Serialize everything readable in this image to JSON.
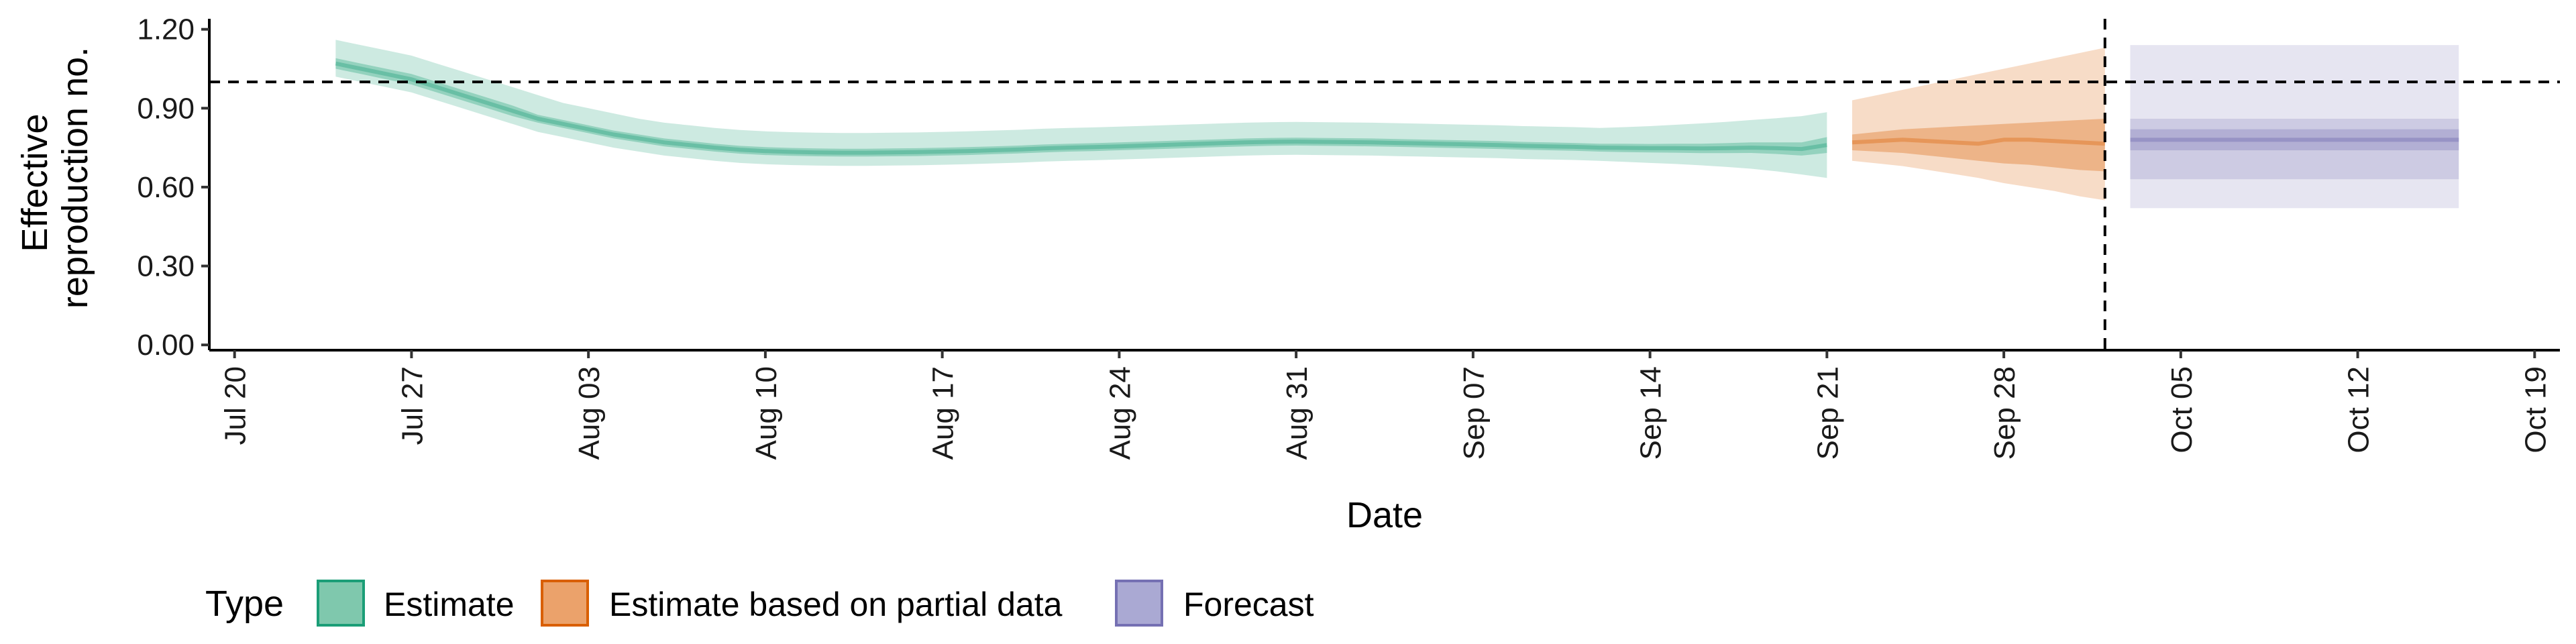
{
  "chart_data": {
    "type": "area",
    "xlabel": "Date",
    "ylabel_lines": [
      "Effective",
      "reproduction no."
    ],
    "x_range": [
      "2020-07-19",
      "2020-10-20"
    ],
    "ylim": [
      -0.02,
      1.24
    ],
    "grid": false,
    "y_ticks": [
      {
        "value": 0.0,
        "label": "0.00"
      },
      {
        "value": 0.3,
        "label": "0.30"
      },
      {
        "value": 0.6,
        "label": "0.60"
      },
      {
        "value": 0.9,
        "label": "0.90"
      },
      {
        "value": 1.2,
        "label": "1.20"
      }
    ],
    "x_ticks": [
      {
        "date": "2020-07-20",
        "label": "Jul 20"
      },
      {
        "date": "2020-07-27",
        "label": "Jul 27"
      },
      {
        "date": "2020-08-03",
        "label": "Aug 03"
      },
      {
        "date": "2020-08-10",
        "label": "Aug 10"
      },
      {
        "date": "2020-08-17",
        "label": "Aug 17"
      },
      {
        "date": "2020-08-24",
        "label": "Aug 24"
      },
      {
        "date": "2020-08-31",
        "label": "Aug 31"
      },
      {
        "date": "2020-09-07",
        "label": "Sep 07"
      },
      {
        "date": "2020-09-14",
        "label": "Sep 14"
      },
      {
        "date": "2020-09-21",
        "label": "Sep 21"
      },
      {
        "date": "2020-09-28",
        "label": "Sep 28"
      },
      {
        "date": "2020-10-05",
        "label": "Oct 05"
      },
      {
        "date": "2020-10-12",
        "label": "Oct 12"
      },
      {
        "date": "2020-10-19",
        "label": "Oct 19"
      }
    ],
    "reference_line_y": 1.0,
    "reference_line_x": "2020-10-02",
    "legend": {
      "title": "Type",
      "placement": "bottom",
      "entries": [
        {
          "key": "estimate",
          "label": "Estimate",
          "fill": "#7fc8ad",
          "stroke": "#1b9e77"
        },
        {
          "key": "partial",
          "label": "Estimate based on partial data",
          "fill": "#eba26b",
          "stroke": "#d95f02"
        },
        {
          "key": "forecast",
          "label": "Forecast",
          "fill": "#aaa9d3",
          "stroke": "#7570b3"
        }
      ]
    },
    "series": [
      {
        "key": "estimate",
        "color": "#1b9e77",
        "x": [
          "2020-07-24",
          "2020-07-25",
          "2020-07-26",
          "2020-07-27",
          "2020-07-28",
          "2020-07-29",
          "2020-07-30",
          "2020-07-31",
          "2020-08-01",
          "2020-08-02",
          "2020-08-03",
          "2020-08-04",
          "2020-08-05",
          "2020-08-06",
          "2020-08-07",
          "2020-08-08",
          "2020-08-09",
          "2020-08-10",
          "2020-08-11",
          "2020-08-12",
          "2020-08-13",
          "2020-08-14",
          "2020-08-15",
          "2020-08-16",
          "2020-08-17",
          "2020-08-18",
          "2020-08-19",
          "2020-08-20",
          "2020-08-21",
          "2020-08-22",
          "2020-08-23",
          "2020-08-24",
          "2020-08-25",
          "2020-08-26",
          "2020-08-27",
          "2020-08-28",
          "2020-08-29",
          "2020-08-30",
          "2020-08-31",
          "2020-09-01",
          "2020-09-02",
          "2020-09-03",
          "2020-09-04",
          "2020-09-05",
          "2020-09-06",
          "2020-09-07",
          "2020-09-08",
          "2020-09-09",
          "2020-09-10",
          "2020-09-11",
          "2020-09-12",
          "2020-09-13",
          "2020-09-14",
          "2020-09-15",
          "2020-09-16",
          "2020-09-17",
          "2020-09-18",
          "2020-09-19",
          "2020-09-20",
          "2020-09-21"
        ],
        "median": [
          1.07,
          1.05,
          1.03,
          1.01,
          0.98,
          0.95,
          0.92,
          0.89,
          0.86,
          0.84,
          0.82,
          0.8,
          0.785,
          0.77,
          0.76,
          0.75,
          0.742,
          0.737,
          0.734,
          0.732,
          0.731,
          0.731,
          0.732,
          0.733,
          0.735,
          0.737,
          0.74,
          0.743,
          0.747,
          0.75,
          0.752,
          0.755,
          0.758,
          0.761,
          0.764,
          0.767,
          0.77,
          0.772,
          0.773,
          0.772,
          0.771,
          0.77,
          0.768,
          0.766,
          0.764,
          0.762,
          0.76,
          0.757,
          0.755,
          0.753,
          0.75,
          0.749,
          0.748,
          0.748,
          0.747,
          0.748,
          0.75,
          0.748,
          0.745,
          0.76
        ],
        "lower50": [
          1.05,
          1.03,
          1.01,
          0.99,
          0.96,
          0.93,
          0.9,
          0.87,
          0.845,
          0.825,
          0.805,
          0.785,
          0.77,
          0.755,
          0.745,
          0.735,
          0.727,
          0.722,
          0.719,
          0.717,
          0.716,
          0.716,
          0.717,
          0.718,
          0.72,
          0.722,
          0.725,
          0.728,
          0.732,
          0.735,
          0.737,
          0.74,
          0.743,
          0.746,
          0.749,
          0.752,
          0.755,
          0.757,
          0.758,
          0.757,
          0.756,
          0.755,
          0.753,
          0.751,
          0.749,
          0.747,
          0.745,
          0.742,
          0.74,
          0.738,
          0.735,
          0.733,
          0.732,
          0.731,
          0.729,
          0.729,
          0.73,
          0.726,
          0.72,
          0.73
        ],
        "upper50": [
          1.09,
          1.07,
          1.05,
          1.03,
          1.0,
          0.97,
          0.94,
          0.91,
          0.875,
          0.855,
          0.835,
          0.815,
          0.8,
          0.785,
          0.775,
          0.765,
          0.757,
          0.752,
          0.749,
          0.747,
          0.746,
          0.746,
          0.747,
          0.748,
          0.75,
          0.752,
          0.755,
          0.758,
          0.762,
          0.765,
          0.767,
          0.77,
          0.773,
          0.776,
          0.779,
          0.782,
          0.785,
          0.787,
          0.788,
          0.787,
          0.786,
          0.785,
          0.783,
          0.781,
          0.779,
          0.777,
          0.775,
          0.772,
          0.77,
          0.768,
          0.765,
          0.765,
          0.764,
          0.765,
          0.765,
          0.767,
          0.77,
          0.77,
          0.77,
          0.79
        ],
        "lower90": [
          1.02,
          1.0,
          0.98,
          0.96,
          0.93,
          0.9,
          0.87,
          0.84,
          0.81,
          0.79,
          0.77,
          0.75,
          0.735,
          0.72,
          0.71,
          0.7,
          0.692,
          0.687,
          0.684,
          0.682,
          0.681,
          0.681,
          0.682,
          0.683,
          0.685,
          0.687,
          0.69,
          0.693,
          0.697,
          0.7,
          0.702,
          0.705,
          0.708,
          0.711,
          0.714,
          0.717,
          0.72,
          0.722,
          0.723,
          0.722,
          0.721,
          0.72,
          0.718,
          0.716,
          0.714,
          0.712,
          0.71,
          0.707,
          0.705,
          0.703,
          0.7,
          0.696,
          0.692,
          0.688,
          0.683,
          0.677,
          0.67,
          0.66,
          0.648,
          0.635
        ],
        "upper90": [
          1.16,
          1.14,
          1.12,
          1.1,
          1.07,
          1.04,
          1.01,
          0.98,
          0.95,
          0.92,
          0.9,
          0.88,
          0.86,
          0.845,
          0.835,
          0.825,
          0.817,
          0.812,
          0.809,
          0.807,
          0.806,
          0.806,
          0.807,
          0.808,
          0.81,
          0.812,
          0.815,
          0.818,
          0.822,
          0.825,
          0.827,
          0.83,
          0.833,
          0.836,
          0.839,
          0.842,
          0.845,
          0.847,
          0.848,
          0.847,
          0.846,
          0.845,
          0.843,
          0.841,
          0.839,
          0.837,
          0.835,
          0.832,
          0.83,
          0.828,
          0.825,
          0.828,
          0.832,
          0.837,
          0.842,
          0.848,
          0.855,
          0.862,
          0.87,
          0.885
        ]
      },
      {
        "key": "partial",
        "color": "#d95f02",
        "x": [
          "2020-09-22",
          "2020-09-23",
          "2020-09-24",
          "2020-09-25",
          "2020-09-26",
          "2020-09-27",
          "2020-09-28",
          "2020-09-29",
          "2020-09-30",
          "2020-10-01",
          "2020-10-02"
        ],
        "median": [
          0.77,
          0.775,
          0.78,
          0.775,
          0.77,
          0.765,
          0.78,
          0.78,
          0.775,
          0.77,
          0.765
        ],
        "lower50": [
          0.74,
          0.735,
          0.73,
          0.72,
          0.71,
          0.7,
          0.69,
          0.685,
          0.675,
          0.665,
          0.66
        ],
        "upper50": [
          0.8,
          0.81,
          0.82,
          0.825,
          0.83,
          0.835,
          0.84,
          0.845,
          0.85,
          0.855,
          0.86
        ],
        "lower90": [
          0.7,
          0.69,
          0.68,
          0.665,
          0.65,
          0.635,
          0.615,
          0.6,
          0.585,
          0.565,
          0.55
        ],
        "upper90": [
          0.93,
          0.95,
          0.97,
          0.99,
          1.01,
          1.03,
          1.05,
          1.07,
          1.09,
          1.11,
          1.13
        ]
      },
      {
        "key": "forecast",
        "color": "#7570b3",
        "x": [
          "2020-10-03",
          "2020-10-16"
        ],
        "median": [
          0.78,
          0.78
        ],
        "lower50": [
          0.74,
          0.74
        ],
        "upper50": [
          0.82,
          0.82
        ],
        "lower75": [
          0.63,
          0.63
        ],
        "upper75": [
          0.86,
          0.86
        ],
        "lower90": [
          0.52,
          0.52
        ],
        "upper90": [
          1.14,
          1.14
        ]
      }
    ]
  }
}
